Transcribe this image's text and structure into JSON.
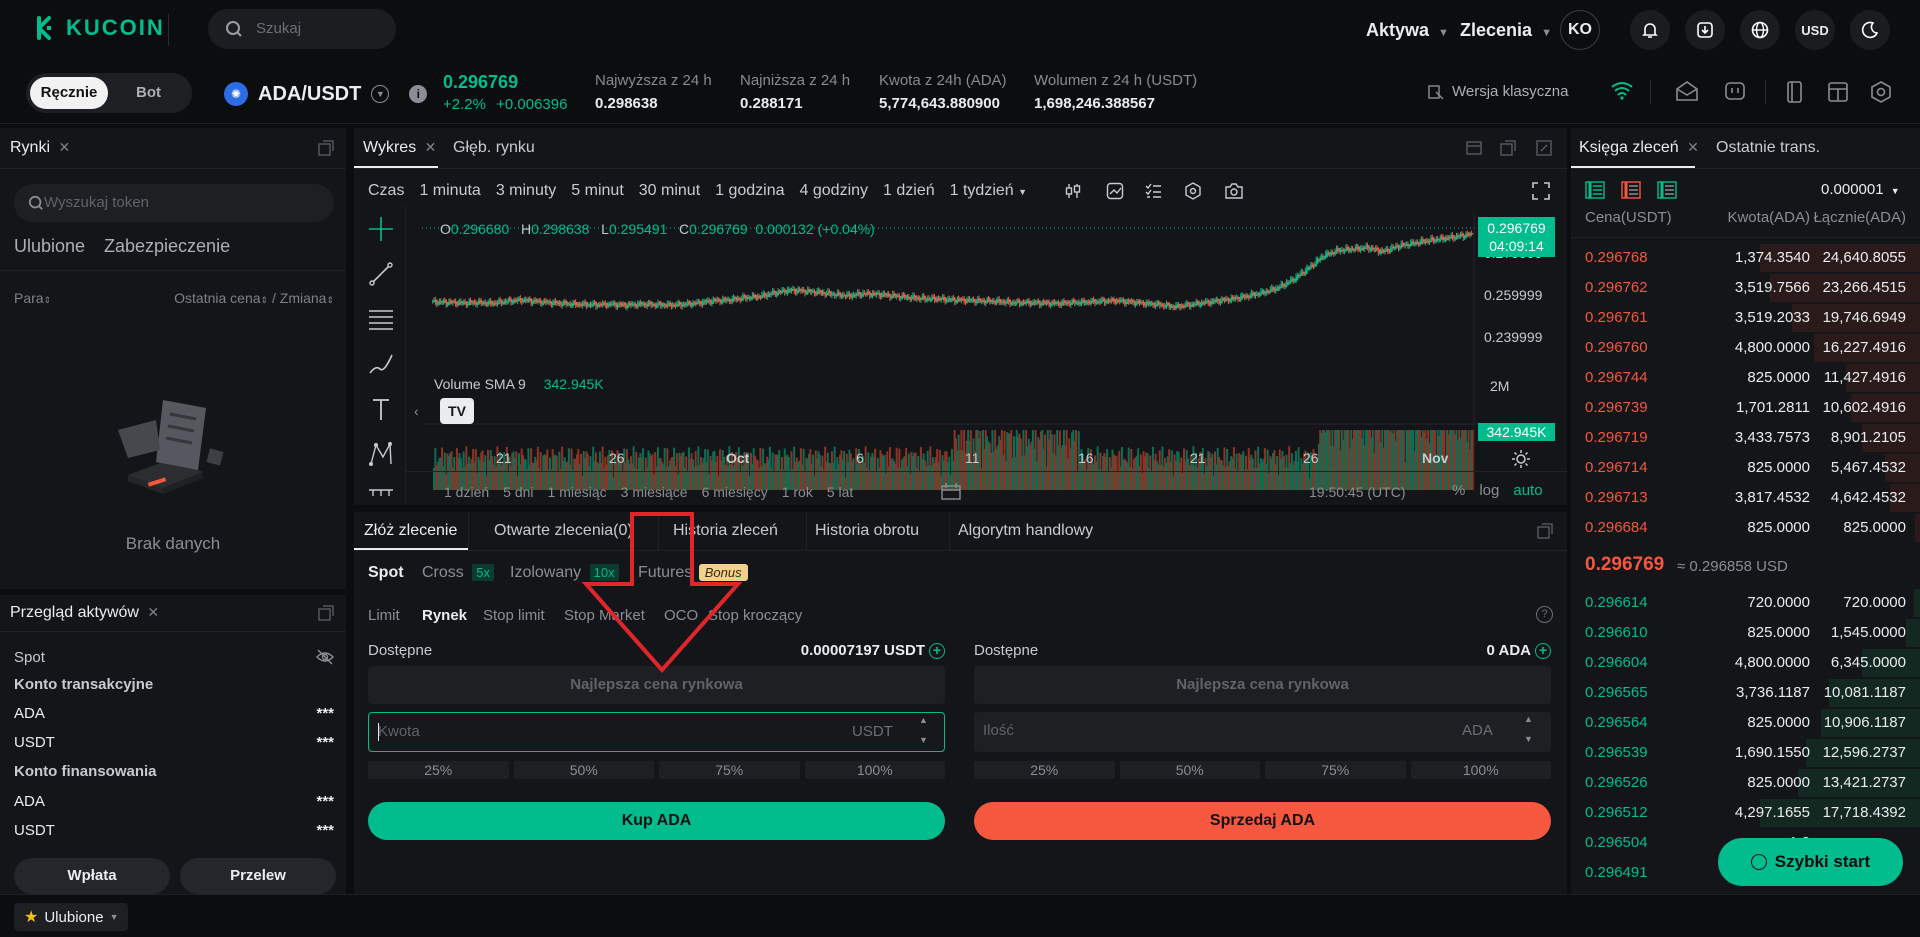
{
  "header": {
    "logo": "KUCOIN",
    "search_placeholder": "Szukaj",
    "nav": [
      "Aktywa",
      "Zlecenia"
    ],
    "avatar": "KO",
    "currency": "USD"
  },
  "ticker": {
    "mode_tabs": [
      "Ręcznie",
      "Bot"
    ],
    "pair": "ADA/USDT",
    "price": "0.296769",
    "change_pct": "+2.2%",
    "change_abs": "+0.006396",
    "stats": [
      {
        "label": "Najwyższa z 24 h",
        "value": "0.298638"
      },
      {
        "label": "Najniższa z 24 h",
        "value": "0.288171"
      },
      {
        "label": "Kwota z 24h (ADA)",
        "value": "5,774,643.880900"
      },
      {
        "label": "Wolumen z 24 h (USDT)",
        "value": "1,698,246.388567"
      }
    ],
    "classic_version": "Wersja klasyczna"
  },
  "markets": {
    "tab": "Rynki",
    "search_placeholder": "Wyszukaj token",
    "categories": [
      "Ulubione",
      "Zabezpieczenie"
    ],
    "col_pair": "Para",
    "col_price": "Ostatnia cena",
    "col_sep": "/",
    "col_change": "Zmiana",
    "empty": "Brak danych"
  },
  "assets": {
    "tab": "Przegląd aktywów",
    "spot": "Spot",
    "trading_account": "Konto transakcyjne",
    "trading_items": [
      {
        "coin": "ADA",
        "value": "***"
      },
      {
        "coin": "USDT",
        "value": "***"
      }
    ],
    "funding_account": "Konto finansowania",
    "funding_items": [
      {
        "coin": "ADA",
        "value": "***"
      },
      {
        "coin": "USDT",
        "value": "***"
      }
    ],
    "deposit": "Wpłata",
    "transfer": "Przelew"
  },
  "footer": {
    "favorites": "Ulubione"
  },
  "chart_panel": {
    "tabs": [
      "Wykres",
      "Głęb. rynku"
    ],
    "time_label": "Czas",
    "intervals": [
      "1 minuta",
      "3 minuty",
      "5 minut",
      "30 minut",
      "1 godzina",
      "4 godziny",
      "1 dzień",
      "1 tydzień"
    ],
    "ohlc": {
      "o_label": "O",
      "o": "0.296680",
      "h_label": "H",
      "h": "0.298638",
      "l_label": "L",
      "l": "0.295491",
      "c_label": "C",
      "c": "0.296769",
      "chg": "0.000132 (+0.04%)"
    },
    "volume_label": "Volume SMA 9",
    "volume_value": "342.945K",
    "price_tag": "0.296769",
    "countdown": "04:09:14",
    "volume_tag": "342.945K",
    "y_axis_labels": [
      "0.279999",
      "0.259999",
      "0.239999"
    ],
    "volume_axis_label": "2M",
    "x_labels": [
      "21",
      "26",
      "Oct",
      "6",
      "11",
      "16",
      "21",
      "26",
      "Nov"
    ],
    "ranges": [
      "1 dzień",
      "5 dni",
      "1 miesiąc",
      "3 miesiące",
      "6 miesięcy",
      "1 rok",
      "5 lat"
    ],
    "clock": "19:50:45 (UTC)",
    "scale_opts": [
      "%",
      "log",
      "auto"
    ]
  },
  "chart_data": {
    "type": "candlestick",
    "title": "ADA/USDT",
    "ylim": [
      0.23,
      0.31
    ],
    "x_ticks": [
      "21",
      "26",
      "Oct",
      "6",
      "11",
      "16",
      "21",
      "26",
      "Nov"
    ],
    "close_path": [
      0.2475,
      0.2472,
      0.2468,
      0.2471,
      0.2466,
      0.248,
      0.249,
      0.2478,
      0.247,
      0.2462,
      0.2458,
      0.2455,
      0.2458,
      0.2452,
      0.246,
      0.2455,
      0.2453,
      0.2458,
      0.247,
      0.2485,
      0.249,
      0.2505,
      0.2515,
      0.254,
      0.256,
      0.2555,
      0.2545,
      0.253,
      0.252,
      0.2535,
      0.253,
      0.252,
      0.2508,
      0.25,
      0.2498,
      0.249,
      0.2488,
      0.2482,
      0.248,
      0.247,
      0.247,
      0.2468,
      0.2465,
      0.247,
      0.2474,
      0.248,
      0.2485,
      0.2475,
      0.2465,
      0.2455,
      0.244,
      0.2455,
      0.247,
      0.2485,
      0.25,
      0.252,
      0.2545,
      0.258,
      0.264,
      0.272,
      0.281,
      0.285,
      0.286,
      0.287,
      0.284,
      0.288,
      0.29,
      0.292,
      0.2935,
      0.295,
      0.2968
    ]
  },
  "order_panel": {
    "tabs": [
      "Złóż zlecenie",
      "Otwarte zlecenia(0)",
      "Historia zleceń",
      "Historia obrotu",
      "Algorytm handlowy"
    ],
    "market_types": [
      {
        "label": "Spot",
        "badge": ""
      },
      {
        "label": "Cross",
        "badge": "5x"
      },
      {
        "label": "Izolowany",
        "badge": "10x"
      },
      {
        "label": "Futures",
        "badge": "Bonus"
      }
    ],
    "order_types": [
      "Limit",
      "Rynek",
      "Stop limit",
      "Stop Market",
      "OCO",
      "Stop kroczący"
    ],
    "buy": {
      "available_label": "Dostępne",
      "available_value": "0.00007197 USDT",
      "price_placeholder": "Najlepsza cena rynkowa",
      "amount_placeholder": "Kwota",
      "amount_unit": "USDT",
      "percents": [
        "25%",
        "50%",
        "75%",
        "100%"
      ],
      "button": "Kup ADA"
    },
    "sell": {
      "available_label": "Dostępne",
      "available_value": "0 ADA",
      "price_placeholder": "Najlepsza cena rynkowa",
      "amount_placeholder": "Ilość",
      "amount_unit": "ADA",
      "percents": [
        "25%",
        "50%",
        "75%",
        "100%"
      ],
      "button": "Sprzedaj ADA"
    }
  },
  "orderbook": {
    "tabs": [
      "Księga zleceń",
      "Ostatnie trans."
    ],
    "precision": "0.000001",
    "col_price": "Cena(USDT)",
    "col_amount": "Kwota(ADA)",
    "col_total": "Łącznie(ADA)",
    "asks": [
      {
        "price": "0.296768",
        "amount": "1,374.3540",
        "total": "24,640.8055",
        "depth": 1.0
      },
      {
        "price": "0.296762",
        "amount": "3,519.7566",
        "total": "23,266.4515",
        "depth": 0.94
      },
      {
        "price": "0.296761",
        "amount": "3,519.2033",
        "total": "19,746.6949",
        "depth": 0.8
      },
      {
        "price": "0.296760",
        "amount": "4,800.0000",
        "total": "16,227.4916",
        "depth": 0.66
      },
      {
        "price": "0.296744",
        "amount": "825.0000",
        "total": "11,427.4916",
        "depth": 0.46
      },
      {
        "price": "0.296739",
        "amount": "1,701.2811",
        "total": "10,602.4916",
        "depth": 0.43
      },
      {
        "price": "0.296719",
        "amount": "3,433.7573",
        "total": "8,901.2105",
        "depth": 0.36
      },
      {
        "price": "0.296714",
        "amount": "825.0000",
        "total": "5,467.4532",
        "depth": 0.22
      },
      {
        "price": "0.296713",
        "amount": "3,817.4532",
        "total": "4,642.4532",
        "depth": 0.19
      },
      {
        "price": "0.296684",
        "amount": "825.0000",
        "total": "825.0000",
        "depth": 0.03
      }
    ],
    "last_price": "0.296769",
    "approx": "≈ 0.296858 USD",
    "bids": [
      {
        "price": "0.296614",
        "amount": "720.0000",
        "total": "720.0000",
        "depth": 0.04
      },
      {
        "price": "0.296610",
        "amount": "825.0000",
        "total": "1,545.0000",
        "depth": 0.09
      },
      {
        "price": "0.296604",
        "amount": "4,800.0000",
        "total": "6,345.0000",
        "depth": 0.36
      },
      {
        "price": "0.296565",
        "amount": "3,736.1187",
        "total": "10,081.1187",
        "depth": 0.57
      },
      {
        "price": "0.296564",
        "amount": "825.0000",
        "total": "10,906.1187",
        "depth": 0.62
      },
      {
        "price": "0.296539",
        "amount": "1,690.1550",
        "total": "12,596.2737",
        "depth": 0.71
      },
      {
        "price": "0.296526",
        "amount": "825.0000",
        "total": "13,421.2737",
        "depth": 0.76
      },
      {
        "price": "0.296512",
        "amount": "4,297.1655",
        "total": "17,718.4392",
        "depth": 1.0
      },
      {
        "price": "0.296504",
        "amount": "1,2",
        "total": "",
        "depth": 0.0
      },
      {
        "price": "0.296491",
        "amount": "2,",
        "total": "",
        "depth": 0.0
      }
    ],
    "quick_start": "Szybki start"
  },
  "colors": {
    "accent": "#01bc8d",
    "down": "#f6573f",
    "bg": "#0c0d0f",
    "panel": "#141519"
  }
}
